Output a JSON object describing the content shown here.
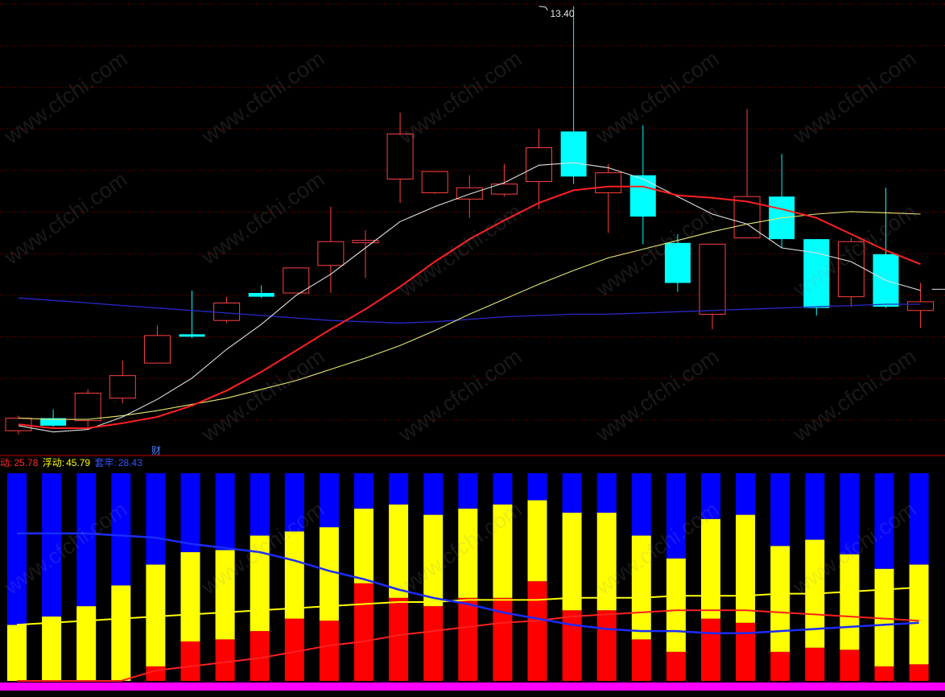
{
  "labels": {
    "high_marker": "13.40",
    "indicator_tag": "财",
    "legend": [
      {
        "name": "动:",
        "value": "25.78",
        "color": "#ff2a2a"
      },
      {
        "name": "浮动:",
        "value": "45.79",
        "color": "#ffff00"
      },
      {
        "name": "套牢:",
        "value": "28.43",
        "color": "#3355ff"
      }
    ],
    "watermark": "www.cfchi.com"
  },
  "colors": {
    "background": "#000000",
    "up_candle": "#ff4040",
    "down_candle": "#00ffff",
    "ma_white": "#e0e0e0",
    "ma_red": "#ff2020",
    "ma_yellow": "#e8e870",
    "ma_blue": "#2828c8",
    "gridline": "#7a0000",
    "separator": "#c00000",
    "bar_red": "#ff0000",
    "bar_yellow": "#ffff00",
    "bar_blue": "#0000ff",
    "bottom_band": "#ff00ff"
  },
  "chart_data": [
    {
      "type": "candlestick",
      "y_range": [
        9.85,
        13.45
      ],
      "grid": true,
      "high_label": {
        "index": 15,
        "value": 13.4
      },
      "candles": [
        {
          "o": 10.01,
          "c": 10.11,
          "h": 10.13,
          "l": 9.98
        },
        {
          "o": 10.11,
          "c": 10.05,
          "h": 10.18,
          "l": 10.04
        },
        {
          "o": 10.09,
          "c": 10.31,
          "h": 10.34,
          "l": 10.04
        },
        {
          "o": 10.27,
          "c": 10.45,
          "h": 10.57,
          "l": 10.23
        },
        {
          "o": 10.55,
          "c": 10.77,
          "h": 10.85,
          "l": 10.55
        },
        {
          "o": 10.78,
          "c": 10.77,
          "h": 11.13,
          "l": 10.75
        },
        {
          "o": 10.89,
          "c": 11.03,
          "h": 11.08,
          "l": 10.87
        },
        {
          "o": 11.11,
          "c": 11.08,
          "h": 11.17,
          "l": 11.07
        },
        {
          "o": 11.11,
          "c": 11.31,
          "h": 11.31,
          "l": 11.11
        },
        {
          "o": 11.33,
          "c": 11.52,
          "h": 11.8,
          "l": 11.11
        },
        {
          "o": 11.52,
          "c": 11.53,
          "h": 11.61,
          "l": 11.23
        },
        {
          "o": 12.02,
          "c": 12.38,
          "h": 12.55,
          "l": 11.83
        },
        {
          "o": 11.91,
          "c": 12.08,
          "h": 12.08,
          "l": 11.9
        },
        {
          "o": 11.86,
          "c": 11.95,
          "h": 12.05,
          "l": 11.71
        },
        {
          "o": 11.9,
          "c": 11.98,
          "h": 12.14,
          "l": 11.88
        },
        {
          "o": 12.0,
          "c": 12.27,
          "h": 12.42,
          "l": 11.78
        },
        {
          "o": 12.4,
          "c": 12.04,
          "h": 13.4,
          "l": 11.98
        },
        {
          "o": 11.91,
          "c": 12.07,
          "h": 12.14,
          "l": 11.59
        },
        {
          "o": 12.05,
          "c": 11.72,
          "h": 12.45,
          "l": 11.5
        },
        {
          "o": 11.51,
          "c": 11.19,
          "h": 11.58,
          "l": 11.12
        },
        {
          "o": 10.94,
          "c": 11.5,
          "h": 11.5,
          "l": 10.82
        },
        {
          "o": 11.55,
          "c": 11.88,
          "h": 12.58,
          "l": 11.55
        },
        {
          "o": 11.88,
          "c": 11.54,
          "h": 12.22,
          "l": 11.47
        },
        {
          "o": 11.54,
          "c": 10.99,
          "h": 11.54,
          "l": 10.93
        },
        {
          "o": 11.08,
          "c": 11.52,
          "h": 11.55,
          "l": 11.0
        },
        {
          "o": 11.42,
          "c": 11.0,
          "h": 11.95,
          "l": 10.99
        },
        {
          "o": 10.97,
          "c": 11.04,
          "h": 11.19,
          "l": 10.83
        }
      ],
      "ma_white": [
        10.05,
        10.0,
        10.02,
        10.12,
        10.26,
        10.43,
        10.66,
        10.86,
        11.09,
        11.26,
        11.47,
        11.68,
        11.8,
        11.9,
        11.99,
        12.13,
        12.15,
        12.11,
        12.02,
        11.88,
        11.74,
        11.66,
        11.47,
        11.43,
        11.36,
        11.21,
        11.13
      ],
      "ma_red": [
        10.06,
        10.03,
        10.03,
        10.07,
        10.12,
        10.21,
        10.33,
        10.48,
        10.65,
        10.82,
        10.98,
        11.16,
        11.36,
        11.54,
        11.69,
        11.83,
        11.93,
        11.96,
        11.96,
        11.89,
        11.87,
        11.84,
        11.78,
        11.71,
        11.58,
        11.45,
        11.34
      ],
      "ma_yellow": [
        10.11,
        10.1,
        10.1,
        10.13,
        10.17,
        10.22,
        10.27,
        10.34,
        10.41,
        10.5,
        10.59,
        10.69,
        10.81,
        10.94,
        11.06,
        11.18,
        11.29,
        11.39,
        11.46,
        11.53,
        11.6,
        11.66,
        11.71,
        11.74,
        11.76,
        11.75,
        11.74
      ],
      "ma_blue": [
        11.07,
        11.05,
        11.03,
        11.01,
        10.99,
        10.97,
        10.95,
        10.93,
        10.91,
        10.89,
        10.88,
        10.87,
        10.88,
        10.9,
        10.92,
        10.93,
        10.94,
        10.94,
        10.95,
        10.96,
        10.97,
        10.98,
        10.99,
        11.0,
        11.01,
        11.02,
        11.02
      ]
    },
    {
      "type": "stacked-bar",
      "y_range": [
        0,
        100
      ],
      "series": [
        {
          "name": "动",
          "color": "#ff0000",
          "values": [
            0,
            0,
            0,
            0,
            7,
            19,
            20,
            24,
            30,
            29,
            47,
            40,
            36,
            40,
            40,
            48,
            34,
            34,
            20,
            14,
            30,
            28,
            14,
            16,
            15,
            7,
            8
          ]
        },
        {
          "name": "浮动",
          "color": "#ffff00",
          "values": [
            27,
            31,
            36,
            46,
            49,
            43,
            43,
            46,
            42,
            45,
            36,
            45,
            44,
            43,
            45,
            39,
            47,
            47,
            50,
            45,
            48,
            52,
            51,
            52,
            46,
            47,
            48
          ]
        },
        {
          "name": "套牢",
          "color": "#0000ff",
          "values": [
            73,
            69,
            64,
            54,
            44,
            38,
            37,
            30,
            28,
            26,
            17,
            15,
            20,
            17,
            15,
            13,
            19,
            19,
            30,
            41,
            22,
            20,
            35,
            32,
            39,
            46,
            44
          ]
        }
      ],
      "line_blue": [
        71,
        71,
        71,
        70,
        69,
        66,
        64,
        62,
        58,
        53,
        49,
        44,
        40,
        37,
        33,
        30,
        27,
        25,
        24,
        24,
        23,
        23,
        24,
        25,
        26,
        27,
        28
      ],
      "line_yellow": [
        27,
        28,
        29,
        30,
        31,
        32,
        33,
        34,
        35,
        36,
        37,
        38,
        38,
        39,
        39,
        39,
        40,
        40,
        40,
        41,
        41,
        41,
        42,
        42,
        43,
        44,
        45
      ],
      "line_red": [
        0,
        0,
        0,
        0,
        5,
        7,
        9,
        11,
        14,
        17,
        19,
        22,
        24,
        26,
        28,
        29,
        31,
        32,
        33,
        34,
        34,
        34,
        33,
        32,
        31,
        30,
        29
      ]
    }
  ]
}
